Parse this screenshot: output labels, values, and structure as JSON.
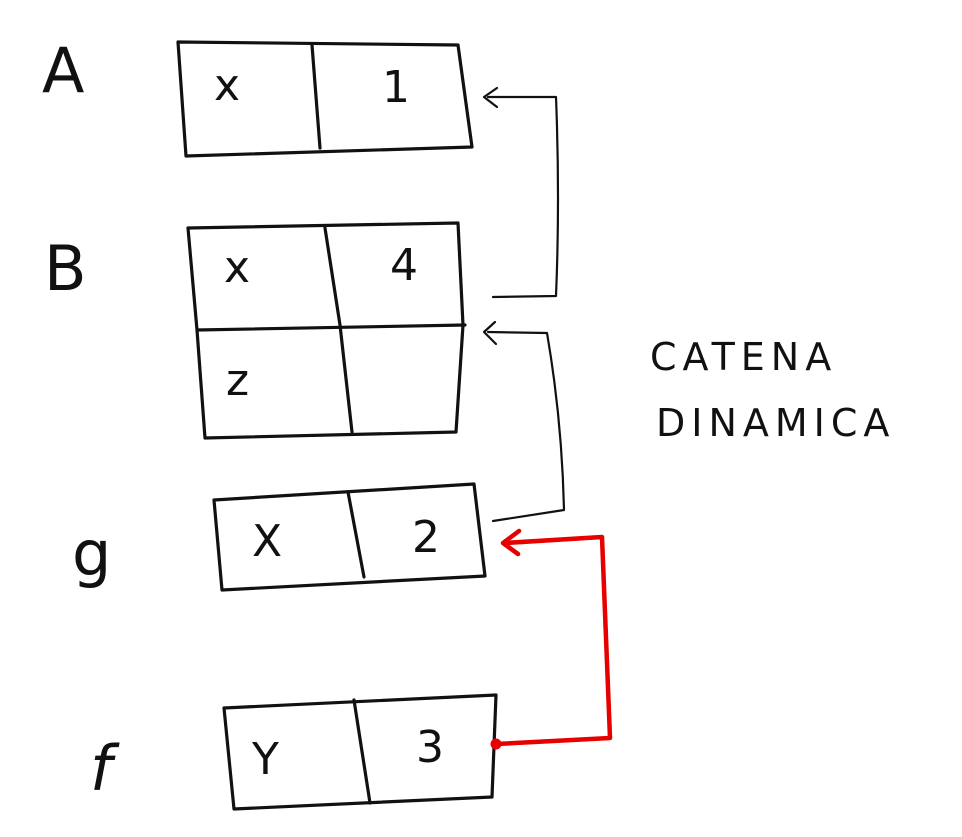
{
  "title_lines": [
    "CATENA",
    "DINAMICA"
  ],
  "frames": [
    {
      "label": "A",
      "cells": [
        [
          "x",
          "1"
        ]
      ]
    },
    {
      "label": "B",
      "cells": [
        [
          "x",
          "4"
        ],
        [
          "z",
          ""
        ]
      ]
    },
    {
      "label": "g",
      "cells": [
        [
          "X",
          "2"
        ]
      ]
    },
    {
      "label": "f",
      "cells": [
        [
          "Y",
          "3"
        ]
      ]
    }
  ],
  "colors": {
    "ink": "#111111",
    "highlight": "#e60000",
    "background": "#ffffff"
  },
  "links": [
    {
      "from": "B",
      "to": "A",
      "color": "ink"
    },
    {
      "from": "g",
      "to": "B",
      "color": "ink"
    },
    {
      "from": "f",
      "to": "g",
      "color": "highlight"
    }
  ]
}
